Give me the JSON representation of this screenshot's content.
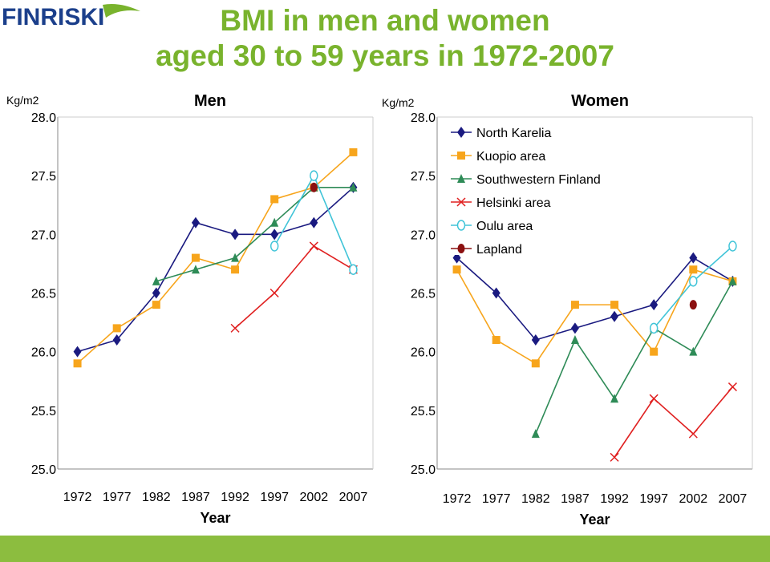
{
  "logo": {
    "text": "FINRISKI"
  },
  "title": {
    "line1": "BMI in men and women",
    "line2": "aged 30 to 59 years in 1972-2007"
  },
  "colors": {
    "title": "#79b32d",
    "bottom_bar": "#8cbd3f",
    "North Karelia": "#1a1a80",
    "Kuopio area": "#f7a51c",
    "Southwestern Finland": "#2e8b57",
    "Helsinki area": "#e02020",
    "Oulu area": "#40c4d8",
    "Lapland": "#8b1010"
  },
  "legend": [
    "North Karelia",
    "Kuopio area",
    "Southwestern Finland",
    "Helsinki area",
    "Oulu area",
    "Lapland"
  ],
  "chart_data": [
    {
      "type": "line",
      "title": "Men",
      "unit_label": "Kg/m2",
      "xlabel": "Year",
      "ylabel": "Kg/m2",
      "x": [
        1972,
        1977,
        1982,
        1987,
        1992,
        1997,
        2002,
        2007
      ],
      "ylim": [
        25.0,
        28.0
      ],
      "yticks": [
        "25.0",
        "25.5",
        "26.0",
        "26.5",
        "27.0",
        "27.5",
        "28.0"
      ],
      "grid": false,
      "series": [
        {
          "name": "North Karelia",
          "marker": "diamond",
          "values": [
            26.0,
            26.1,
            26.5,
            27.1,
            27.0,
            27.0,
            27.1,
            27.4
          ]
        },
        {
          "name": "Kuopio area",
          "marker": "square",
          "values": [
            25.9,
            26.2,
            26.4,
            26.8,
            26.7,
            27.3,
            27.4,
            27.7
          ]
        },
        {
          "name": "Southwestern Finland",
          "marker": "triangle",
          "values": [
            null,
            null,
            26.6,
            26.7,
            26.8,
            27.1,
            27.4,
            27.4
          ]
        },
        {
          "name": "Helsinki area",
          "marker": "x",
          "values": [
            null,
            null,
            null,
            null,
            26.2,
            26.5,
            26.9,
            26.7
          ]
        },
        {
          "name": "Oulu area",
          "marker": "circle-open",
          "values": [
            null,
            null,
            null,
            null,
            null,
            26.9,
            27.5,
            26.7
          ]
        },
        {
          "name": "Lapland",
          "marker": "circle",
          "values": [
            null,
            null,
            null,
            null,
            null,
            null,
            27.4,
            null
          ]
        }
      ]
    },
    {
      "type": "line",
      "title": "Women",
      "unit_label": "Kg/m2",
      "xlabel": "Year",
      "ylabel": "Kg/m2",
      "x": [
        1972,
        1977,
        1982,
        1987,
        1992,
        1997,
        2002,
        2007
      ],
      "ylim": [
        25.0,
        28.0
      ],
      "yticks": [
        "25.0",
        "25.5",
        "26.0",
        "26.5",
        "27.0",
        "27.5",
        "28.0"
      ],
      "grid": false,
      "series": [
        {
          "name": "North Karelia",
          "marker": "diamond",
          "values": [
            26.8,
            26.5,
            26.1,
            26.2,
            26.3,
            26.4,
            26.8,
            26.6
          ]
        },
        {
          "name": "Kuopio area",
          "marker": "square",
          "values": [
            26.7,
            26.1,
            25.9,
            26.4,
            26.4,
            26.0,
            26.7,
            26.6
          ]
        },
        {
          "name": "Southwestern Finland",
          "marker": "triangle",
          "values": [
            null,
            null,
            25.3,
            26.1,
            25.6,
            26.2,
            26.0,
            26.6
          ]
        },
        {
          "name": "Helsinki area",
          "marker": "x",
          "values": [
            null,
            null,
            null,
            null,
            25.1,
            25.6,
            25.3,
            25.7
          ]
        },
        {
          "name": "Oulu area",
          "marker": "circle-open",
          "values": [
            null,
            null,
            null,
            null,
            null,
            26.2,
            26.6,
            26.9
          ]
        },
        {
          "name": "Lapland",
          "marker": "circle",
          "values": [
            null,
            null,
            null,
            null,
            null,
            null,
            26.4,
            null
          ]
        }
      ]
    }
  ]
}
